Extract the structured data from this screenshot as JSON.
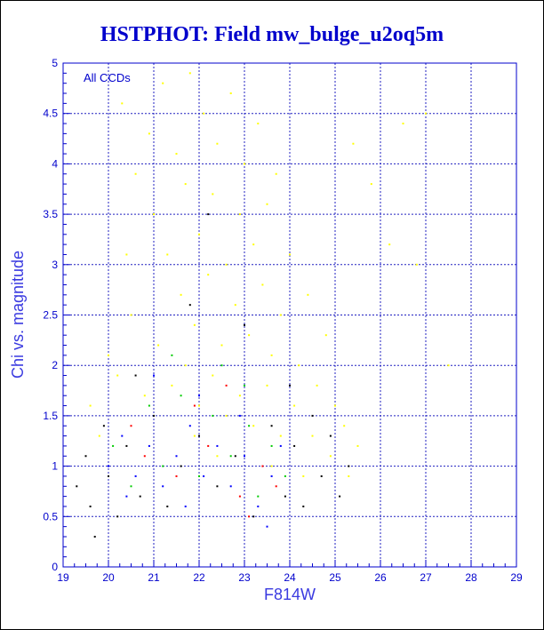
{
  "chart_data": {
    "type": "scatter",
    "title": "HSTPHOT: Field mw_bulge_u2oq5m",
    "xlabel": "F814W",
    "ylabel": "Chi vs. magnitude",
    "annotation": "All CCDs",
    "xlim": [
      19,
      29
    ],
    "ylim": [
      0,
      5
    ],
    "x_ticks": [
      "19",
      "20",
      "21",
      "22",
      "23",
      "24",
      "25",
      "26",
      "27",
      "28",
      "29"
    ],
    "y_ticks": [
      "0",
      "0.5",
      "1",
      "1.5",
      "2",
      "2.5",
      "3",
      "3.5",
      "4",
      "4.5",
      "5"
    ],
    "grid": true,
    "colors": {
      "axis": "#0000cc",
      "grid": "#2020c0",
      "yellow": "#ffff00",
      "black": "#000000",
      "green": "#00cc00",
      "blue": "#0000ff",
      "red": "#ff0000"
    },
    "series": [
      {
        "color": "#ffff00",
        "points": [
          [
            20.3,
            4.6
          ],
          [
            20.6,
            3.9
          ],
          [
            20.9,
            4.3
          ],
          [
            21.0,
            3.5
          ],
          [
            21.2,
            4.8
          ],
          [
            21.3,
            3.1
          ],
          [
            21.5,
            4.1
          ],
          [
            21.6,
            2.7
          ],
          [
            21.7,
            3.8
          ],
          [
            21.8,
            4.9
          ],
          [
            21.9,
            2.4
          ],
          [
            22.0,
            3.3
          ],
          [
            22.1,
            4.5
          ],
          [
            22.2,
            2.9
          ],
          [
            22.3,
            3.7
          ],
          [
            22.4,
            4.2
          ],
          [
            22.5,
            2.2
          ],
          [
            22.6,
            3.0
          ],
          [
            22.7,
            4.7
          ],
          [
            22.8,
            2.6
          ],
          [
            22.9,
            3.5
          ],
          [
            23.0,
            4.0
          ],
          [
            23.1,
            2.3
          ],
          [
            23.2,
            3.2
          ],
          [
            23.3,
            4.4
          ],
          [
            23.4,
            2.8
          ],
          [
            23.5,
            3.6
          ],
          [
            23.6,
            2.1
          ],
          [
            23.7,
            3.9
          ],
          [
            23.8,
            2.5
          ],
          [
            24.0,
            3.1
          ],
          [
            24.2,
            2.0
          ],
          [
            24.4,
            2.7
          ],
          [
            24.6,
            1.8
          ],
          [
            24.8,
            2.3
          ],
          [
            25.0,
            1.6
          ],
          [
            25.2,
            1.4
          ],
          [
            25.5,
            1.2
          ],
          [
            20.0,
            2.1
          ],
          [
            20.2,
            1.9
          ],
          [
            20.5,
            2.5
          ],
          [
            20.8,
            1.7
          ],
          [
            21.1,
            2.2
          ],
          [
            21.4,
            1.8
          ],
          [
            21.7,
            2.0
          ],
          [
            22.0,
            1.6
          ],
          [
            22.3,
            1.9
          ],
          [
            22.6,
            1.5
          ],
          [
            22.9,
            1.7
          ],
          [
            23.2,
            1.4
          ],
          [
            23.5,
            1.8
          ],
          [
            23.8,
            1.3
          ],
          [
            24.1,
            1.6
          ],
          [
            24.5,
            1.3
          ],
          [
            24.9,
            1.1
          ],
          [
            25.3,
            0.9
          ],
          [
            19.6,
            1.6
          ],
          [
            19.8,
            1.3
          ],
          [
            26.5,
            4.4
          ],
          [
            27.0,
            4.5
          ],
          [
            26.2,
            3.2
          ],
          [
            25.8,
            3.8
          ],
          [
            26.8,
            3.0
          ],
          [
            27.5,
            2.0
          ],
          [
            25.4,
            4.2
          ],
          [
            20.4,
            3.1
          ],
          [
            21.9,
            1.3
          ],
          [
            22.4,
            1.1
          ],
          [
            23.6,
            1.0
          ],
          [
            24.3,
            0.9
          ]
        ]
      },
      {
        "color": "#000000",
        "points": [
          [
            19.3,
            0.8
          ],
          [
            19.5,
            1.1
          ],
          [
            19.6,
            0.6
          ],
          [
            19.7,
            0.3
          ],
          [
            19.9,
            1.4
          ],
          [
            20.0,
            0.9
          ],
          [
            20.2,
            0.5
          ],
          [
            20.4,
            1.2
          ],
          [
            20.7,
            0.7
          ],
          [
            21.0,
            1.5
          ],
          [
            21.3,
            0.6
          ],
          [
            21.6,
            1.0
          ],
          [
            22.0,
            1.3
          ],
          [
            22.4,
            0.8
          ],
          [
            22.8,
            1.1
          ],
          [
            23.2,
            0.5
          ],
          [
            23.6,
            1.4
          ],
          [
            23.9,
            0.7
          ],
          [
            24.1,
            1.2
          ],
          [
            24.3,
            0.6
          ],
          [
            24.5,
            1.5
          ],
          [
            24.7,
            0.9
          ],
          [
            24.9,
            1.3
          ],
          [
            25.1,
            0.7
          ],
          [
            25.3,
            1.0
          ],
          [
            23.0,
            2.4
          ],
          [
            22.2,
            3.5
          ],
          [
            21.8,
            2.6
          ],
          [
            20.6,
            1.9
          ],
          [
            24.0,
            1.8
          ]
        ]
      },
      {
        "color": "#00cc00",
        "points": [
          [
            20.1,
            1.2
          ],
          [
            20.5,
            0.8
          ],
          [
            20.9,
            1.6
          ],
          [
            21.2,
            1.0
          ],
          [
            21.6,
            1.7
          ],
          [
            22.0,
            0.9
          ],
          [
            22.3,
            1.5
          ],
          [
            22.7,
            1.1
          ],
          [
            23.0,
            1.8
          ],
          [
            23.3,
            0.7
          ],
          [
            23.6,
            1.2
          ],
          [
            23.9,
            0.9
          ],
          [
            21.4,
            2.1
          ],
          [
            22.5,
            2.0
          ],
          [
            23.1,
            1.4
          ]
        ]
      },
      {
        "color": "#0000ff",
        "points": [
          [
            20.0,
            1.0
          ],
          [
            20.3,
            1.3
          ],
          [
            20.6,
            0.9
          ],
          [
            20.9,
            1.2
          ],
          [
            21.2,
            0.8
          ],
          [
            21.5,
            1.1
          ],
          [
            21.8,
            1.4
          ],
          [
            22.1,
            0.9
          ],
          [
            22.4,
            1.2
          ],
          [
            22.7,
            0.8
          ],
          [
            23.0,
            1.1
          ],
          [
            23.3,
            0.6
          ],
          [
            23.6,
            0.9
          ],
          [
            23.8,
            1.2
          ],
          [
            21.0,
            1.9
          ],
          [
            22.0,
            1.7
          ],
          [
            22.9,
            1.5
          ],
          [
            23.5,
            0.4
          ],
          [
            20.4,
            0.7
          ],
          [
            21.7,
            0.6
          ]
        ]
      },
      {
        "color": "#ff0000",
        "points": [
          [
            20.8,
            1.1
          ],
          [
            21.5,
            0.9
          ],
          [
            22.2,
            1.2
          ],
          [
            22.9,
            0.7
          ],
          [
            23.4,
            1.0
          ],
          [
            23.1,
            0.5
          ],
          [
            21.9,
            1.6
          ],
          [
            22.6,
            1.8
          ],
          [
            20.5,
            1.4
          ],
          [
            23.7,
            0.8
          ]
        ]
      }
    ]
  }
}
